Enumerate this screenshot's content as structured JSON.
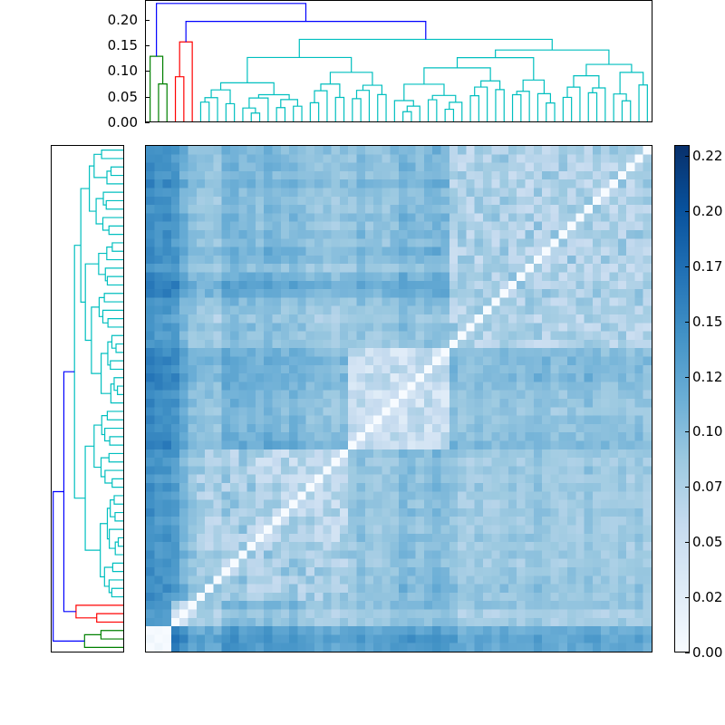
{
  "chart_data": {
    "type": "heatmap",
    "title": "",
    "description": "Clustered distance matrix heatmap (60x60) with column dendrogram on top and row dendrogram on left, Blues colormap",
    "n": 60,
    "colormap": [
      "#f7fbff",
      "#deebf7",
      "#c6dbef",
      "#9ecae1",
      "#6baed6",
      "#4292c6",
      "#2171b5",
      "#08519c",
      "#08306b"
    ],
    "value_range": [
      0.0,
      0.225
    ],
    "colorbar": {
      "ticks": [
        "0.00",
        "0.02",
        "0.05",
        "0.07",
        "0.10",
        "0.12",
        "0.15",
        "0.17",
        "0.20",
        "0.22"
      ]
    },
    "top_dendrogram": {
      "yticks": [
        "0.00",
        "0.05",
        "0.10",
        "0.15",
        "0.20"
      ],
      "ylim": [
        0,
        0.235
      ],
      "cluster_colors": {
        "green": "#008000",
        "red": "#ff0000",
        "cyan": "#00bfbf",
        "blue": "#0000ff"
      },
      "leaf_groups": [
        {
          "color": "green",
          "leaves": 3,
          "height": 0.127
        },
        {
          "color": "red",
          "leaves": 3,
          "height": 0.155
        },
        {
          "color": "cyan",
          "leaves": 54,
          "height": 0.16
        }
      ],
      "root_links": [
        {
          "color": "blue",
          "height": 0.23
        },
        {
          "color": "blue",
          "height": 0.195
        }
      ]
    },
    "left_dendrogram": {
      "orientation": "left",
      "mirror_of": "top_dendrogram"
    },
    "row_profile": [
      0.1,
      0.09,
      0.1,
      0.09,
      0.11,
      0.09,
      0.09,
      0.09,
      0.1,
      0.09,
      0.1,
      0.09,
      0.11,
      0.1,
      0.08,
      0.11,
      0.13,
      0.12,
      0.09,
      0.08,
      0.07,
      0.09,
      0.08,
      0.08,
      0.11,
      0.12,
      0.11,
      0.12,
      0.11,
      0.1,
      0.1,
      0.09,
      0.1,
      0.1,
      0.11,
      0.12,
      0.09,
      0.08,
      0.09,
      0.08,
      0.09,
      0.08,
      0.08,
      0.09,
      0.08,
      0.08,
      0.09,
      0.08,
      0.09,
      0.08,
      0.09,
      0.09,
      0.1,
      0.09,
      0.1,
      0.07,
      0.08,
      0.14,
      0.16,
      0.15
    ],
    "col_profile": [
      0.17,
      0.16,
      0.16,
      0.15,
      0.11,
      0.08,
      0.07,
      0.07,
      0.06,
      0.1,
      0.1,
      0.09,
      0.09,
      0.08,
      0.1,
      0.09,
      0.08,
      0.09,
      0.08,
      0.07,
      0.07,
      0.07,
      0.06,
      0.07,
      0.07,
      0.09,
      0.07,
      0.07,
      0.07,
      0.08,
      0.1,
      0.09,
      0.08,
      0.09,
      0.1,
      0.09,
      0.08,
      0.06,
      0.06,
      0.07,
      0.06,
      0.06,
      0.07,
      0.07,
      0.06,
      0.07,
      0.08,
      0.07,
      0.06,
      0.06,
      0.07,
      0.06,
      0.08,
      0.07,
      0.06,
      0.06,
      0.07,
      0.06,
      0.07,
      0.06
    ],
    "blocks": [
      {
        "rows": [
          0,
          2
        ],
        "cols": [
          0,
          2
        ],
        "value": 0.01
      },
      {
        "rows": [
          3,
          5
        ],
        "cols": [
          3,
          5
        ],
        "value": 0.05
      },
      {
        "rows": [
          6,
          23
        ],
        "cols": [
          6,
          23
        ],
        "value": 0.065
      },
      {
        "rows": [
          24,
          35
        ],
        "cols": [
          24,
          35
        ],
        "value": 0.035
      },
      {
        "rows": [
          36,
          59
        ],
        "cols": [
          36,
          59
        ],
        "value": 0.06
      },
      {
        "rows": [
          13,
          23
        ],
        "cols": [
          13,
          23
        ],
        "value": 0.05
      }
    ]
  }
}
